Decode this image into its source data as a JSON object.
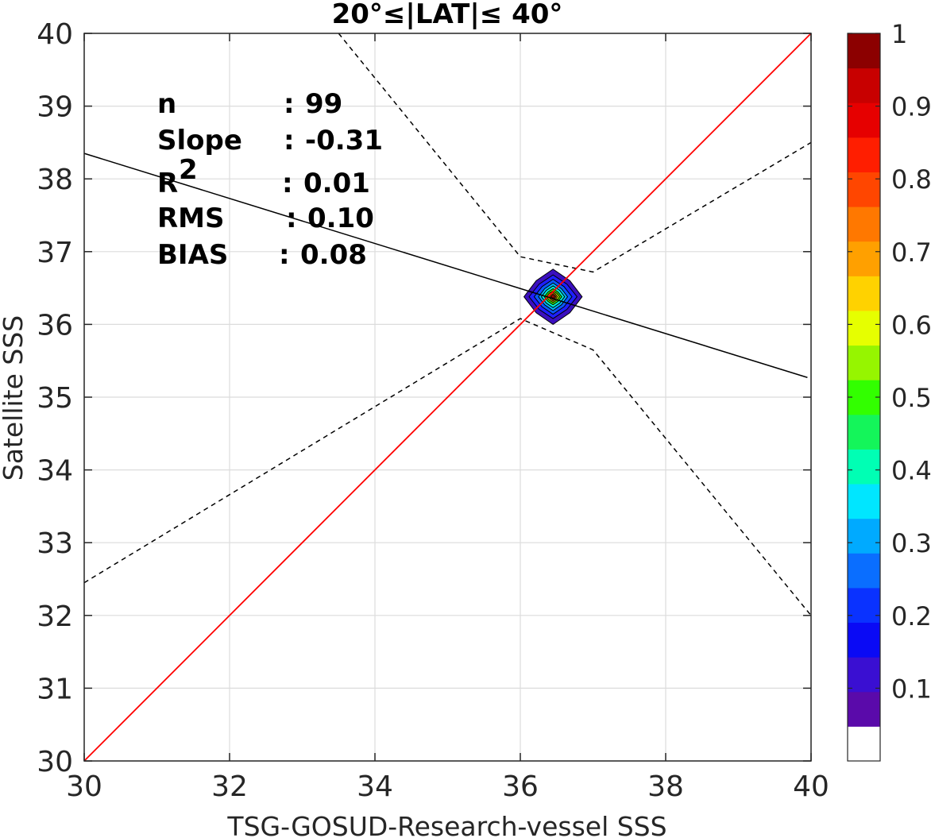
{
  "chart_data": {
    "type": "contour",
    "title": "20°≤|LAT|≤ 40°",
    "xlabel": "TSG-GOSUD-Research-vessel SSS",
    "ylabel": "Satellite SSS",
    "xlim": [
      30,
      40
    ],
    "ylim": [
      30,
      40
    ],
    "xticks": [
      "30",
      "32",
      "34",
      "36",
      "38",
      "40"
    ],
    "yticks": [
      "30",
      "31",
      "32",
      "33",
      "34",
      "35",
      "36",
      "37",
      "38",
      "39",
      "40"
    ],
    "grid": true,
    "stats": [
      {
        "label": "n",
        "sep": ":",
        "value": "99"
      },
      {
        "label": "Slope",
        "sep": ":",
        "value": "-0.31"
      },
      {
        "label": "R",
        "sup": "2",
        "sep": ":",
        "value": "0.01"
      },
      {
        "label": "RMS",
        "sep": ":",
        "value": "0.10"
      },
      {
        "label": "BIAS",
        "sep": ":",
        "value": "0.08"
      }
    ],
    "identity_line": {
      "x": [
        30,
        40
      ],
      "y": [
        30,
        40
      ],
      "color": "#ff0000"
    },
    "fit_line": {
      "x": [
        30,
        39.95
      ],
      "y": [
        38.35,
        35.27
      ],
      "color": "#000000"
    },
    "confidence_bounds": [
      {
        "x": [
          33.5,
          36.0,
          37.0,
          40.0
        ],
        "y": [
          40.0,
          36.93,
          36.72,
          38.5
        ]
      },
      {
        "x": [
          30.0,
          36.0,
          37.0,
          40.0
        ],
        "y": [
          32.45,
          36.08,
          35.65,
          32.0
        ]
      }
    ],
    "density": {
      "center": [
        36.45,
        36.38
      ],
      "levels": [
        0.1,
        0.2,
        0.3,
        0.4,
        0.5,
        0.6,
        0.7,
        0.8,
        0.9,
        1.0
      ],
      "level_radii": [
        [
          0.4,
          0.38
        ],
        [
          0.33,
          0.3
        ],
        [
          0.26,
          0.24
        ],
        [
          0.2,
          0.19
        ],
        [
          0.16,
          0.15
        ],
        [
          0.12,
          0.11
        ],
        [
          0.09,
          0.08
        ],
        [
          0.06,
          0.06
        ],
        [
          0.04,
          0.04
        ],
        [
          0.02,
          0.02
        ]
      ],
      "level_colors": [
        "#3b0fbf",
        "#1f1fff",
        "#0a58ff",
        "#00b4ff",
        "#00f5d0",
        "#3cf000",
        "#e6ff00",
        "#ffb400",
        "#ff3c00",
        "#ff0000"
      ]
    },
    "colorbar": {
      "range": [
        0,
        1
      ],
      "ticks": [
        "0.1",
        "0.2",
        "0.3",
        "0.4",
        "0.5",
        "0.6",
        "0.7",
        "0.8",
        "0.9",
        "1"
      ],
      "colors": [
        "#ffffff",
        "#5a0aaa",
        "#3a0fd2",
        "#0a0af5",
        "#0a32ff",
        "#0a6eff",
        "#00aaff",
        "#00e6ff",
        "#00ffb4",
        "#14f55a",
        "#32ff00",
        "#96f500",
        "#e6ff00",
        "#ffd200",
        "#ffa000",
        "#ff7800",
        "#ff4600",
        "#ff1e00",
        "#e60000",
        "#c80000",
        "#8c0000"
      ]
    }
  }
}
